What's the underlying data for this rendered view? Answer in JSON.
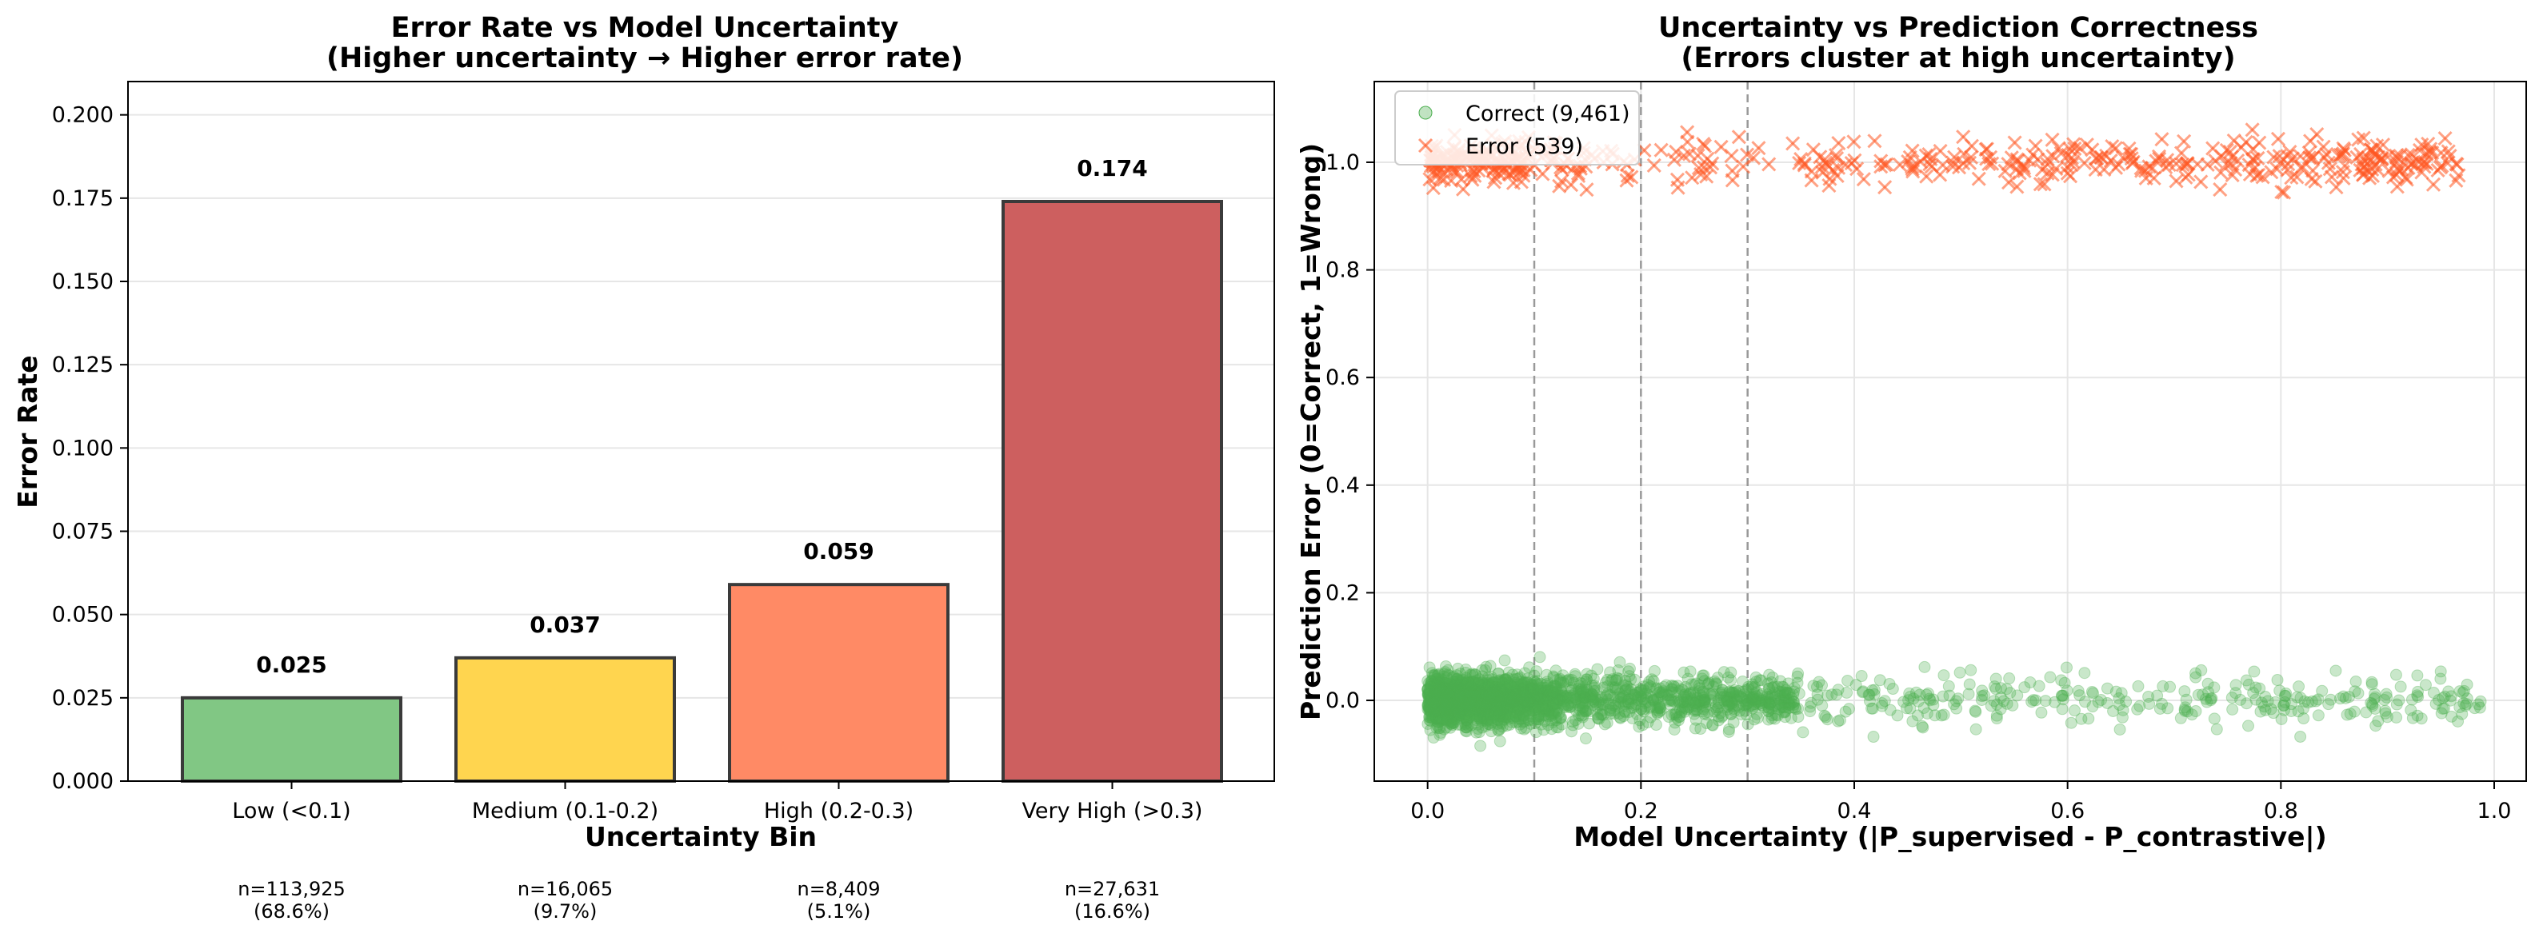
{
  "colors": {
    "low": "#81c784",
    "medium": "#ffd54f",
    "high": "#ff8a65",
    "very_high": "#cd5f5f",
    "correct": "#4caf50",
    "error": "#ff5722",
    "grid": "#e6e6e6",
    "threshold_line": "#999999"
  },
  "chart_data": [
    {
      "type": "bar",
      "title": [
        "Error Rate vs Model Uncertainty",
        "(Higher uncertainty → Higher error rate)"
      ],
      "xlabel": "Uncertainty Bin",
      "ylabel": "Error Rate",
      "ylim": [
        0,
        0.21
      ],
      "yticks": [
        "0.000",
        "0.025",
        "0.050",
        "0.075",
        "0.100",
        "0.125",
        "0.150",
        "0.175",
        "0.200"
      ],
      "categories": [
        "Low (<0.1)",
        "Medium (0.1-0.2)",
        "High (0.2-0.3)",
        "Very High (>0.3)"
      ],
      "values": [
        0.025,
        0.037,
        0.059,
        0.174
      ],
      "value_labels": [
        "0.025",
        "0.037",
        "0.059",
        "0.174"
      ],
      "counts": [
        [
          "n=113,925",
          "(68.6%)"
        ],
        [
          "n=16,065",
          "(9.7%)"
        ],
        [
          "n=8,409",
          "(5.1%)"
        ],
        [
          "n=27,631",
          "(16.6%)"
        ]
      ],
      "grid": "y"
    },
    {
      "type": "scatter",
      "title": [
        "Uncertainty vs Prediction Correctness",
        "(Errors cluster at high uncertainty)"
      ],
      "xlabel": "Model Uncertainty (|P_supervised - P_contrastive|)",
      "ylabel": "Prediction Error (0=Correct, 1=Wrong)",
      "xlim": [
        -0.05,
        1.03
      ],
      "ylim": [
        -0.15,
        1.15
      ],
      "xticks": [
        "0.0",
        "0.2",
        "0.4",
        "0.6",
        "0.8",
        "1.0"
      ],
      "yticks": [
        "0.0",
        "0.2",
        "0.4",
        "0.6",
        "0.8",
        "1.0"
      ],
      "threshold_lines_x": [
        0.1,
        0.2,
        0.3
      ],
      "grid": "both",
      "legend_position": "top-left",
      "series": [
        {
          "name": "Correct (9,461)",
          "marker": "circle",
          "y_center": 0.0,
          "y_jitter": 0.05,
          "count": 9461,
          "x_max": 0.99
        },
        {
          "name": "Error (539)",
          "marker": "x",
          "y_center": 1.0,
          "y_jitter": 0.05,
          "count": 539,
          "x_max": 0.97
        }
      ]
    }
  ]
}
